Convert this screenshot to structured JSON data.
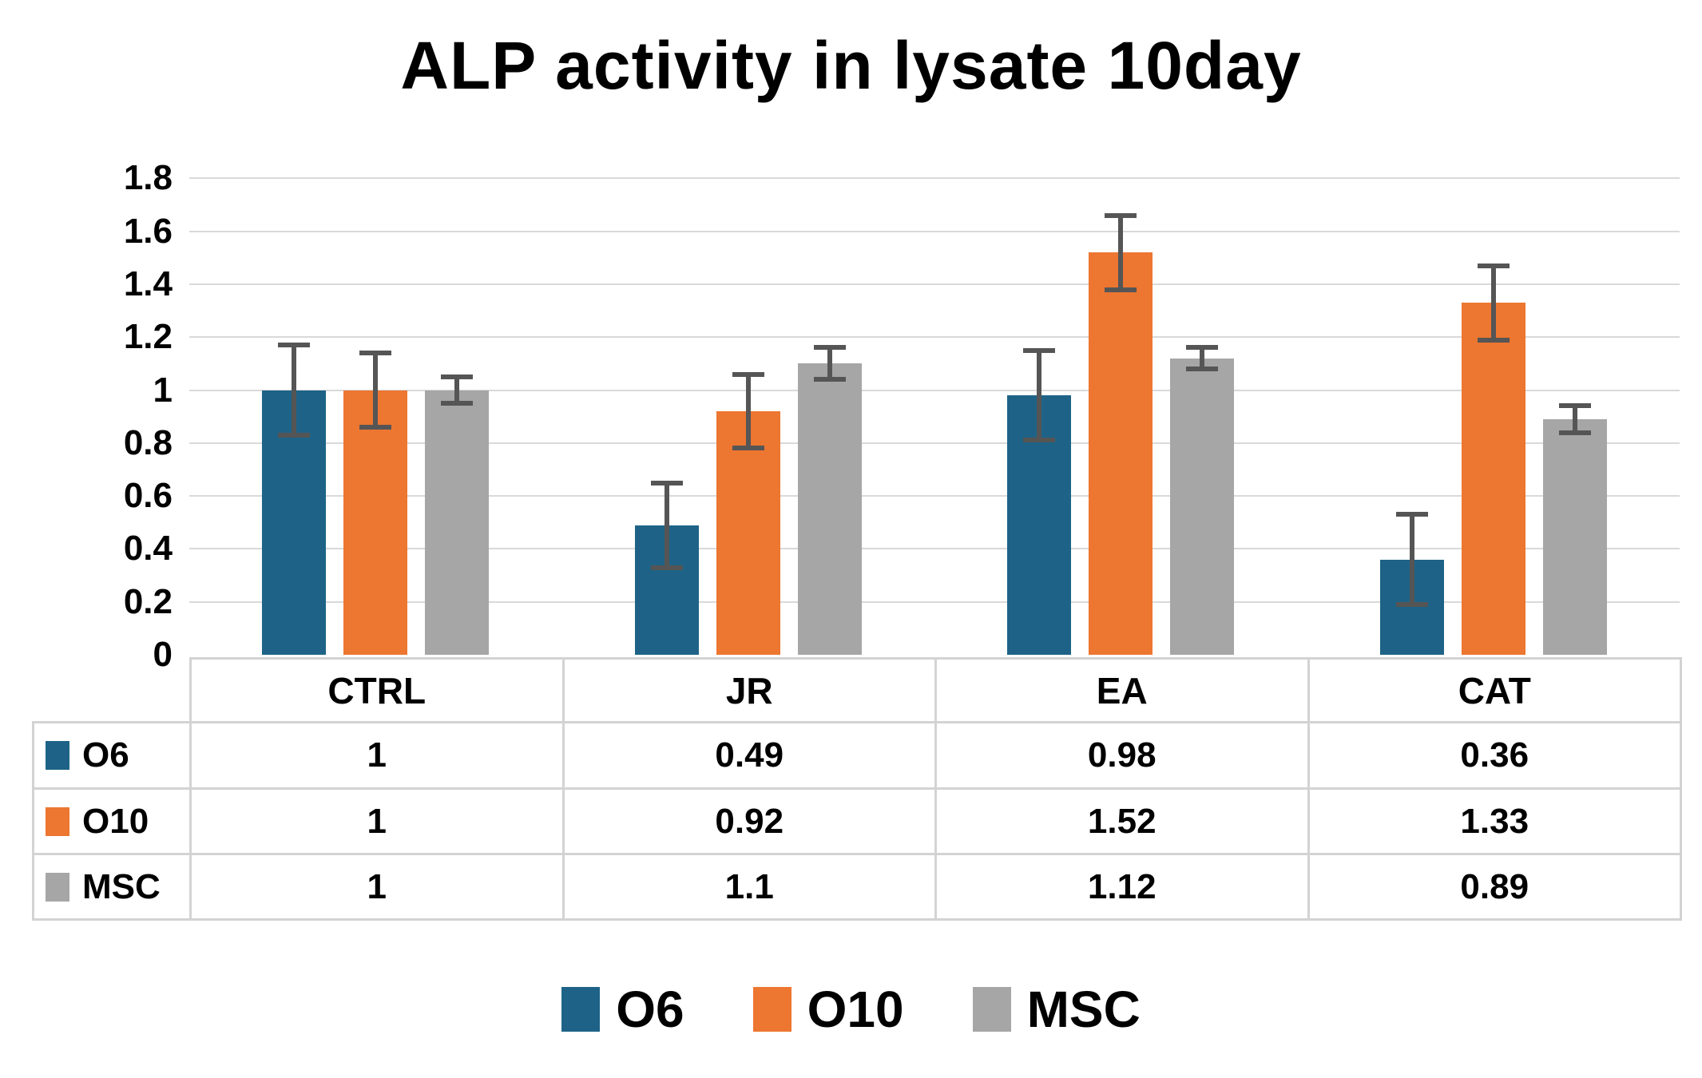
{
  "title_label": "ALP activity in lysate 10day",
  "colors": {
    "o6": "#1E6387",
    "o10": "#ED7631",
    "msc": "#A6A6A6",
    "error_bar": "#555555",
    "gridline": "#D9D9D9",
    "table_border": "#D3D3D3",
    "text": "#000000",
    "background": "#FFFFFF"
  },
  "chart_data": {
    "type": "bar",
    "title": "ALP activity in lysate 10day",
    "categories": [
      "CTRL",
      "JR",
      "EA",
      "CAT"
    ],
    "series": [
      {
        "name": "O6",
        "color": "#1E6387",
        "values": [
          1,
          0.49,
          0.98,
          0.36
        ],
        "errors": [
          0.17,
          0.16,
          0.17,
          0.17
        ]
      },
      {
        "name": "O10",
        "color": "#ED7631",
        "values": [
          1,
          0.92,
          1.52,
          1.33
        ],
        "errors": [
          0.14,
          0.14,
          0.14,
          0.14
        ]
      },
      {
        "name": "MSC",
        "color": "#A6A6A6",
        "values": [
          1,
          1.1,
          1.12,
          0.89
        ],
        "errors": [
          0.05,
          0.06,
          0.04,
          0.05
        ]
      }
    ],
    "ylim": [
      0,
      1.8
    ],
    "ytick_step": 0.2,
    "yticks": [
      {
        "v": 1.8,
        "label": "1.8"
      },
      {
        "v": 1.6,
        "label": "1.6"
      },
      {
        "v": 1.4,
        "label": "1.4"
      },
      {
        "v": 1.2,
        "label": "1.2"
      },
      {
        "v": 1.0,
        "label": "1"
      },
      {
        "v": 0.8,
        "label": "0.8"
      },
      {
        "v": 0.6,
        "label": "0.6"
      },
      {
        "v": 0.4,
        "label": "0.4"
      },
      {
        "v": 0.2,
        "label": "0.2"
      },
      {
        "v": 0.0,
        "label": "0"
      }
    ],
    "grid": true,
    "legend_position": "bottom",
    "has_data_table": true
  },
  "table": {
    "column_headers": [
      "CTRL",
      "JR",
      "EA",
      "CAT"
    ],
    "rows": [
      {
        "label": "O6",
        "color": "#1E6387",
        "values": [
          "1",
          "0.49",
          "0.98",
          "0.36"
        ]
      },
      {
        "label": "O10",
        "color": "#ED7631",
        "values": [
          "1",
          "0.92",
          "1.52",
          "1.33"
        ]
      },
      {
        "label": "MSC",
        "color": "#A6A6A6",
        "values": [
          "1",
          "1.1",
          "1.12",
          "0.89"
        ]
      }
    ]
  },
  "legend": {
    "items": [
      {
        "label": "O6",
        "color": "#1E6387"
      },
      {
        "label": "O10",
        "color": "#ED7631"
      },
      {
        "label": "MSC",
        "color": "#A6A6A6"
      }
    ]
  }
}
